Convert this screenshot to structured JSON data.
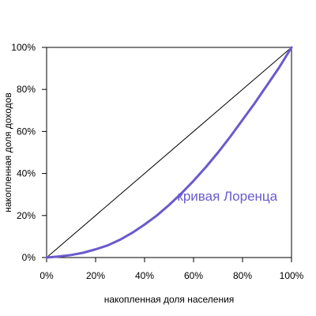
{
  "chart_data": {
    "type": "line",
    "xlabel": "накопленная доля населения",
    "ylabel": "накопленная доля доходов",
    "xlim": [
      0,
      100
    ],
    "ylim": [
      0,
      100
    ],
    "x_ticks": [
      0,
      20,
      40,
      60,
      80,
      100
    ],
    "y_ticks": [
      0,
      20,
      40,
      60,
      80,
      100
    ],
    "x_tick_labels": [
      "0%",
      "20%",
      "40%",
      "60%",
      "80%",
      "100%"
    ],
    "y_tick_labels": [
      "0%",
      "20%",
      "40%",
      "60%",
      "80%",
      "100%"
    ],
    "grid": false,
    "series": [
      {
        "role": "equality-line",
        "color": "#000000",
        "x": [
          0,
          100
        ],
        "y": [
          0,
          100
        ]
      },
      {
        "role": "lorenz-curve",
        "color": "#6a5acd",
        "x": [
          0,
          5,
          10,
          15,
          20,
          25,
          30,
          35,
          40,
          45,
          50,
          55,
          60,
          65,
          70,
          75,
          80,
          85,
          90,
          95,
          100
        ],
        "y": [
          0,
          0.5,
          1.2,
          2.3,
          3.9,
          5.8,
          8.5,
          11.8,
          15.7,
          20.0,
          25.0,
          30.5,
          36.5,
          43.0,
          50.0,
          57.5,
          65.5,
          73.5,
          82.0,
          90.5,
          100
        ]
      }
    ],
    "annotations": [
      {
        "text": "кривая Лоренца",
        "x": 54,
        "y": 27,
        "color": "#6a5acd"
      }
    ]
  }
}
